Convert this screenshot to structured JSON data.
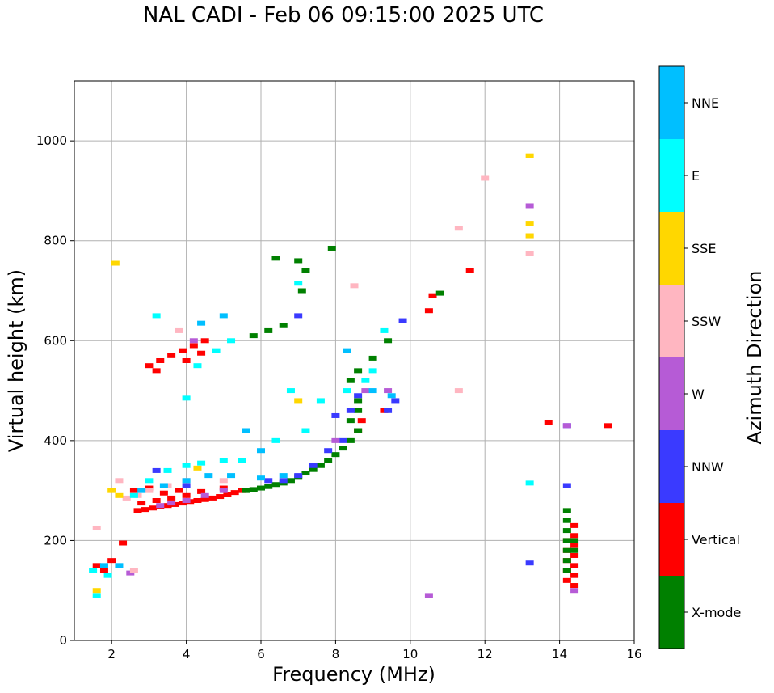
{
  "chart_data": {
    "type": "scatter",
    "title": "NAL CADI - Feb 06 09:15:00 2025 UTC",
    "xlabel": "Frequency (MHz)",
    "ylabel": "Virtual height (km)",
    "xlim": [
      1,
      16
    ],
    "ylim": [
      0,
      1120
    ],
    "xticks": [
      2,
      4,
      6,
      8,
      10,
      12,
      14,
      16
    ],
    "yticks": [
      0,
      200,
      400,
      600,
      800,
      1000
    ],
    "grid": true,
    "colorbar": {
      "label": "Azimuth Direction",
      "categories": [
        {
          "name": "X-mode",
          "color": "#008000"
        },
        {
          "name": "Vertical",
          "color": "#ff0000"
        },
        {
          "name": "NNW",
          "color": "#3a3aff"
        },
        {
          "name": "W",
          "color": "#b65bd6"
        },
        {
          "name": "SSW",
          "color": "#ffb6c1"
        },
        {
          "name": "SSE",
          "color": "#ffd700"
        },
        {
          "name": "E",
          "color": "#00ffff"
        },
        {
          "name": "NNE",
          "color": "#00bfff"
        }
      ]
    },
    "series": [
      {
        "name": "Vertical",
        "points": [
          [
            2.7,
            260
          ],
          [
            2.9,
            262
          ],
          [
            3.1,
            265
          ],
          [
            3.3,
            268
          ],
          [
            3.5,
            270
          ],
          [
            3.7,
            272
          ],
          [
            3.9,
            275
          ],
          [
            4.1,
            278
          ],
          [
            4.3,
            280
          ],
          [
            4.5,
            282
          ],
          [
            4.7,
            285
          ],
          [
            4.9,
            288
          ],
          [
            5.1,
            292
          ],
          [
            5.3,
            296
          ],
          [
            5.5,
            300
          ],
          [
            2.8,
            275
          ],
          [
            3.2,
            280
          ],
          [
            3.6,
            285
          ],
          [
            4.0,
            290
          ],
          [
            2.6,
            300
          ],
          [
            3.0,
            305
          ],
          [
            3.4,
            295
          ],
          [
            3.8,
            300
          ],
          [
            4.4,
            298
          ],
          [
            5.0,
            305
          ],
          [
            3.0,
            550
          ],
          [
            3.3,
            560
          ],
          [
            3.6,
            570
          ],
          [
            3.9,
            580
          ],
          [
            4.2,
            590
          ],
          [
            4.5,
            600
          ],
          [
            3.2,
            540
          ],
          [
            4.0,
            560
          ],
          [
            4.4,
            575
          ],
          [
            8.6,
            420
          ],
          [
            8.7,
            440
          ],
          [
            9.3,
            460
          ],
          [
            10.5,
            660
          ],
          [
            10.6,
            690
          ],
          [
            11.6,
            740
          ],
          [
            13.7,
            437
          ],
          [
            15.3,
            430
          ],
          [
            14.2,
            120
          ],
          [
            14.2,
            140
          ],
          [
            14.2,
            160
          ],
          [
            14.2,
            180
          ],
          [
            14.2,
            200
          ],
          [
            14.4,
            230
          ],
          [
            14.4,
            210
          ],
          [
            14.4,
            190
          ],
          [
            14.4,
            170
          ],
          [
            14.4,
            150
          ],
          [
            14.4,
            130
          ],
          [
            14.4,
            110
          ],
          [
            1.6,
            150
          ],
          [
            1.8,
            140
          ],
          [
            2.0,
            160
          ],
          [
            2.3,
            195
          ]
        ]
      },
      {
        "name": "X-mode",
        "points": [
          [
            5.6,
            300
          ],
          [
            5.8,
            302
          ],
          [
            6.0,
            305
          ],
          [
            6.2,
            308
          ],
          [
            6.4,
            312
          ],
          [
            6.6,
            315
          ],
          [
            6.8,
            320
          ],
          [
            7.0,
            328
          ],
          [
            7.2,
            335
          ],
          [
            7.4,
            342
          ],
          [
            7.6,
            350
          ],
          [
            7.8,
            360
          ],
          [
            8.0,
            372
          ],
          [
            8.2,
            385
          ],
          [
            8.4,
            400
          ],
          [
            8.6,
            420
          ],
          [
            8.4,
            440
          ],
          [
            8.6,
            460
          ],
          [
            8.6,
            480
          ],
          [
            8.4,
            520
          ],
          [
            8.6,
            540
          ],
          [
            9.0,
            565
          ],
          [
            9.4,
            600
          ],
          [
            7.9,
            785
          ],
          [
            6.4,
            765
          ],
          [
            7.0,
            760
          ],
          [
            7.2,
            740
          ],
          [
            6.6,
            630
          ],
          [
            6.2,
            620
          ],
          [
            5.8,
            610
          ],
          [
            14.2,
            260
          ],
          [
            14.2,
            240
          ],
          [
            14.2,
            220
          ],
          [
            14.2,
            200
          ],
          [
            14.2,
            180
          ],
          [
            14.2,
            160
          ],
          [
            14.2,
            140
          ],
          [
            14.4,
            200
          ],
          [
            14.4,
            180
          ],
          [
            10.8,
            695
          ],
          [
            7.1,
            700
          ]
        ]
      },
      {
        "name": "NNW",
        "points": [
          [
            6.2,
            320
          ],
          [
            6.6,
            320
          ],
          [
            7.0,
            330
          ],
          [
            7.4,
            350
          ],
          [
            7.8,
            380
          ],
          [
            8.2,
            400
          ],
          [
            8.0,
            450
          ],
          [
            8.4,
            460
          ],
          [
            9.4,
            460
          ],
          [
            9.6,
            480
          ],
          [
            9.8,
            640
          ],
          [
            7.0,
            650
          ],
          [
            13.2,
            155
          ],
          [
            14.2,
            310
          ],
          [
            14.2,
            430
          ],
          [
            3.2,
            340
          ],
          [
            4.0,
            310
          ],
          [
            8.6,
            490
          ]
        ]
      },
      {
        "name": "W",
        "points": [
          [
            3.3,
            270
          ],
          [
            3.6,
            275
          ],
          [
            4.0,
            280
          ],
          [
            4.5,
            290
          ],
          [
            5.0,
            300
          ],
          [
            8.0,
            400
          ],
          [
            8.8,
            500
          ],
          [
            9.4,
            500
          ],
          [
            10.5,
            90
          ],
          [
            13.2,
            870
          ],
          [
            14.2,
            430
          ],
          [
            4.2,
            600
          ],
          [
            2.5,
            135
          ],
          [
            14.4,
            100
          ]
        ]
      },
      {
        "name": "SSW",
        "points": [
          [
            2.4,
            285
          ],
          [
            2.7,
            290
          ],
          [
            3.0,
            300
          ],
          [
            3.5,
            310
          ],
          [
            4.0,
            320
          ],
          [
            5.0,
            320
          ],
          [
            8.5,
            710
          ],
          [
            11.3,
            825
          ],
          [
            12.0,
            925
          ],
          [
            11.3,
            500
          ],
          [
            13.2,
            810
          ],
          [
            13.2,
            775
          ],
          [
            2.6,
            140
          ],
          [
            1.6,
            225
          ],
          [
            2.2,
            320
          ],
          [
            3.8,
            620
          ]
        ]
      },
      {
        "name": "SSE",
        "points": [
          [
            2.1,
            755
          ],
          [
            2.0,
            300
          ],
          [
            4.3,
            345
          ],
          [
            7.0,
            480
          ],
          [
            13.2,
            970
          ],
          [
            13.2,
            835
          ],
          [
            13.2,
            810
          ],
          [
            1.6,
            100
          ],
          [
            2.2,
            290
          ]
        ]
      },
      {
        "name": "E",
        "points": [
          [
            2.6,
            290
          ],
          [
            3.0,
            320
          ],
          [
            3.5,
            340
          ],
          [
            4.0,
            350
          ],
          [
            4.4,
            355
          ],
          [
            5.0,
            360
          ],
          [
            5.5,
            360
          ],
          [
            6.4,
            400
          ],
          [
            7.2,
            420
          ],
          [
            7.6,
            480
          ],
          [
            8.3,
            500
          ],
          [
            8.8,
            520
          ],
          [
            9.0,
            540
          ],
          [
            9.3,
            620
          ],
          [
            4.0,
            485
          ],
          [
            4.3,
            550
          ],
          [
            4.8,
            580
          ],
          [
            5.2,
            600
          ],
          [
            13.2,
            315
          ],
          [
            7.0,
            715
          ],
          [
            3.2,
            650
          ],
          [
            6.8,
            500
          ],
          [
            1.6,
            90
          ],
          [
            1.5,
            140
          ],
          [
            1.9,
            130
          ]
        ]
      },
      {
        "name": "NNE",
        "points": [
          [
            2.8,
            300
          ],
          [
            3.4,
            310
          ],
          [
            4.0,
            320
          ],
          [
            4.6,
            330
          ],
          [
            5.2,
            330
          ],
          [
            6.0,
            325
          ],
          [
            6.6,
            330
          ],
          [
            8.3,
            580
          ],
          [
            9.0,
            500
          ],
          [
            9.5,
            490
          ],
          [
            4.4,
            635
          ],
          [
            5.0,
            650
          ],
          [
            1.8,
            150
          ],
          [
            2.2,
            150
          ],
          [
            5.6,
            420
          ],
          [
            6.0,
            380
          ]
        ]
      }
    ]
  }
}
